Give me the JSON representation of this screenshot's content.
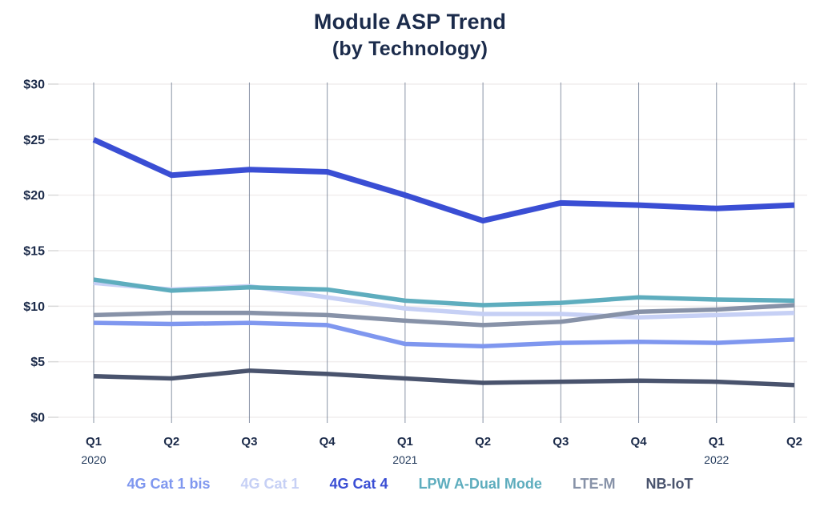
{
  "chart_data": {
    "type": "line",
    "title": "Module ASP Trend",
    "subtitle": "(by Technology)",
    "currency": "$",
    "ylim": [
      0,
      30
    ],
    "y_tick_step": 5,
    "y_tick_labels": [
      "$0",
      "$5",
      "$10",
      "$15",
      "$20",
      "$25",
      "$30"
    ],
    "x_categories": [
      "Q1",
      "Q2",
      "Q3",
      "Q4",
      "Q1",
      "Q2",
      "Q3",
      "Q4",
      "Q1",
      "Q2"
    ],
    "x_years": [
      {
        "index": 0,
        "label": "2020"
      },
      {
        "index": 4,
        "label": "2021"
      },
      {
        "index": 8,
        "label": "2022"
      }
    ],
    "grid": {
      "vertical": true,
      "horizontal": "faint"
    },
    "legend_position": "bottom",
    "series": [
      {
        "name": "4G Cat 1 bis",
        "color": "#7f97ef",
        "thick": false,
        "values": [
          8.5,
          8.4,
          8.5,
          8.3,
          6.6,
          6.4,
          6.7,
          6.8,
          6.7,
          7.0
        ]
      },
      {
        "name": "4G Cat 1",
        "color": "#c6d0f5",
        "thick": false,
        "values": [
          12.1,
          11.5,
          11.8,
          10.8,
          9.8,
          9.3,
          9.3,
          9.0,
          9.2,
          9.4
        ]
      },
      {
        "name": "4G Cat 4",
        "color": "#3a4ed4",
        "thick": true,
        "values": [
          25.0,
          21.8,
          22.3,
          22.1,
          20.0,
          17.7,
          19.3,
          19.1,
          18.8,
          19.1
        ]
      },
      {
        "name": "LPW A-Dual Mode",
        "color": "#5eadbe",
        "thick": false,
        "values": [
          12.4,
          11.4,
          11.7,
          11.5,
          10.5,
          10.1,
          10.3,
          10.8,
          10.6,
          10.5
        ]
      },
      {
        "name": "LTE-M",
        "color": "#8792a8",
        "thick": false,
        "values": [
          9.2,
          9.4,
          9.4,
          9.2,
          8.7,
          8.3,
          8.6,
          9.5,
          9.7,
          10.1
        ]
      },
      {
        "name": "NB-IoT",
        "color": "#49536d",
        "thick": false,
        "values": [
          3.7,
          3.5,
          4.2,
          3.9,
          3.5,
          3.1,
          3.2,
          3.3,
          3.2,
          2.9
        ]
      }
    ],
    "draw_order": [
      "NB-IoT",
      "4G Cat 1 bis",
      "4G Cat 1",
      "LTE-M",
      "LPW A-Dual Mode",
      "4G Cat 4"
    ],
    "colors": {
      "title_text": "#1b2b4b",
      "axis_text": "#1c2b4a",
      "vertical_grid": "#6d7990",
      "horizontal_grid": "#f1eeee",
      "axis_tick": "#d9d9d9"
    }
  }
}
